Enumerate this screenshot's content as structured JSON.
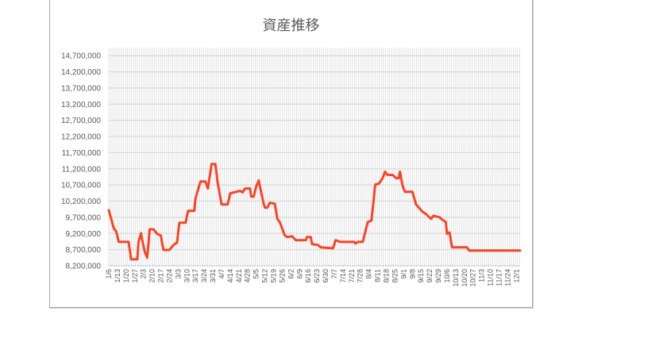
{
  "chart_data": {
    "type": "line",
    "title": "資産推移",
    "xlabel": "",
    "ylabel": "",
    "ylim": [
      8200000,
      14950000
    ],
    "yticks": [
      "8,200,000",
      "8,700,000",
      "9,200,000",
      "9,700,000",
      "10,200,000",
      "10,700,000",
      "11,200,000",
      "11,700,000",
      "12,200,000",
      "12,700,000",
      "13,200,000",
      "13,700,000",
      "14,200,000",
      "14,700,000"
    ],
    "ytick_values": [
      8200000,
      8700000,
      9200000,
      9700000,
      10200000,
      10700000,
      11200000,
      11700000,
      12200000,
      12700000,
      13200000,
      13700000,
      14200000,
      14700000
    ],
    "xrange": [
      "1/6",
      "12/4"
    ],
    "xticks": [
      "1/6",
      "1/13",
      "1/20",
      "1/27",
      "2/3",
      "2/10",
      "2/17",
      "2/24",
      "3/3",
      "3/10",
      "3/17",
      "3/24",
      "3/31",
      "4/7",
      "4/14",
      "4/21",
      "4/28",
      "5/5",
      "5/12",
      "5/19",
      "5/26",
      "6/2",
      "6/9",
      "6/16",
      "6/23",
      "6/30",
      "7/7",
      "7/14",
      "7/21",
      "7/28",
      "8/4",
      "8/11",
      "8/18",
      "8/25",
      "9/1",
      "9/8",
      "9/15",
      "9/22",
      "9/29",
      "10/6",
      "10/13",
      "10/20",
      "10/27",
      "11/3",
      "11/10",
      "11/17",
      "11/24",
      "12/1"
    ],
    "grid": {
      "horizontal": true,
      "vertical": true
    },
    "legend": "none",
    "series": [
      {
        "color": "#f4472a",
        "x": [
          "1/6",
          "1/10",
          "1/12",
          "1/14",
          "1/22",
          "1/24",
          "1/29",
          "1/30",
          "2/1",
          "2/2",
          "2/4",
          "2/6",
          "2/8",
          "2/11",
          "2/14",
          "2/17",
          "2/19",
          "2/24",
          "2/26",
          "2/28",
          "3/2",
          "3/4",
          "3/9",
          "3/11",
          "3/16",
          "3/17",
          "3/21",
          "3/25",
          "3/27",
          "3/30",
          "4/2",
          "4/4",
          "4/7",
          "4/12",
          "4/14",
          "4/19",
          "4/22",
          "4/24",
          "4/26",
          "4/30",
          "5/1",
          "5/3",
          "5/5",
          "5/7",
          "5/8",
          "5/11",
          "5/12",
          "5/14",
          "5/16",
          "5/20",
          "5/22",
          "5/24",
          "5/28",
          "5/30",
          "6/3",
          "6/6",
          "6/14",
          "6/15",
          "6/18",
          "6/19",
          "6/24",
          "6/26",
          "7/6",
          "7/8",
          "7/12",
          "7/23",
          "7/24",
          "7/26",
          "7/30",
          "8/3",
          "8/6",
          "8/9",
          "8/12",
          "8/15",
          "8/17",
          "8/19",
          "8/23",
          "8/26",
          "8/28",
          "8/29",
          "8/31",
          "9/2",
          "9/8",
          "9/11",
          "9/16",
          "9/19",
          "9/23",
          "9/25",
          "9/30",
          "10/2",
          "10/5",
          "10/6",
          "10/8",
          "10/10",
          "10/22",
          "10/24",
          "12/4"
        ],
        "values": [
          9920000,
          9360000,
          9260000,
          8940000,
          8940000,
          8400000,
          8400000,
          8940000,
          9210000,
          8990000,
          8640000,
          8450000,
          9330000,
          9330000,
          9190000,
          9140000,
          8690000,
          8690000,
          8790000,
          8870000,
          8910000,
          9530000,
          9530000,
          9900000,
          9900000,
          10290000,
          10810000,
          10810000,
          10590000,
          11350000,
          11350000,
          10740000,
          10100000,
          10100000,
          10440000,
          10490000,
          10520000,
          10470000,
          10590000,
          10590000,
          10340000,
          10340000,
          10660000,
          10840000,
          10660000,
          10120000,
          10000000,
          10000000,
          10150000,
          10120000,
          9650000,
          9550000,
          9140000,
          9090000,
          9110000,
          8990000,
          8990000,
          9090000,
          9090000,
          8870000,
          8840000,
          8770000,
          8740000,
          8990000,
          8940000,
          8940000,
          8890000,
          8940000,
          8940000,
          9550000,
          9600000,
          10710000,
          10740000,
          10910000,
          11110000,
          11010000,
          11010000,
          10910000,
          10910000,
          11110000,
          10690000,
          10490000,
          10490000,
          10100000,
          9880000,
          9800000,
          9650000,
          9750000,
          9700000,
          9630000,
          9550000,
          9190000,
          9230000,
          8770000,
          8770000,
          8670000,
          8670000
        ]
      }
    ]
  }
}
